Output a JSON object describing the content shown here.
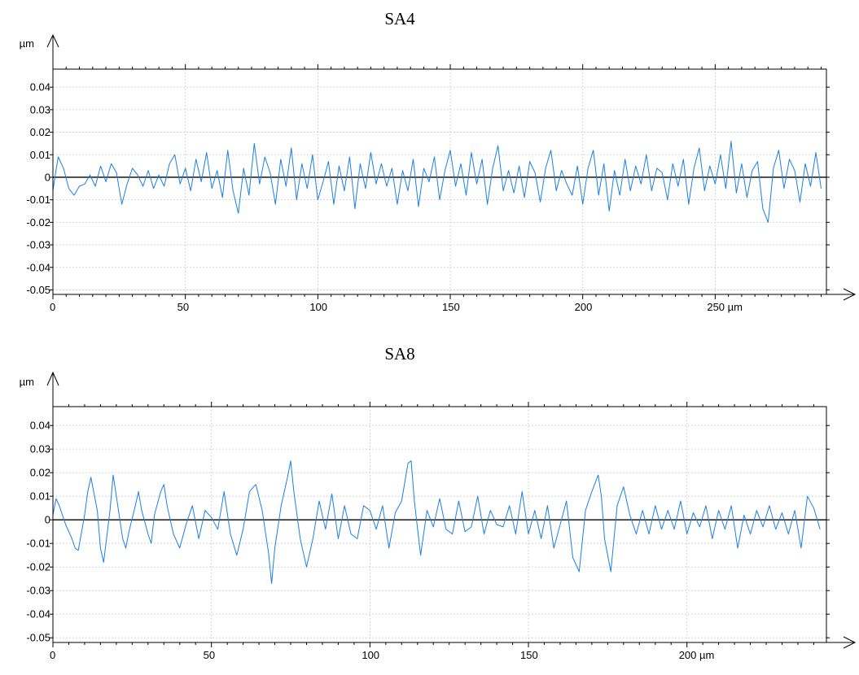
{
  "chart_data": [
    {
      "type": "line",
      "title": "SA4",
      "x_unit": "µm",
      "y_unit": "µm",
      "xlim": [
        0,
        292
      ],
      "ylim": [
        -0.052,
        0.048
      ],
      "x_ticks": [
        0,
        50,
        100,
        150,
        200,
        250
      ],
      "x_tick_labels": [
        "0",
        "50",
        "100",
        "150",
        "200",
        "250 µm"
      ],
      "y_ticks": [
        0.04,
        0.03,
        0.02,
        0.01,
        0,
        -0.01,
        -0.02,
        -0.03,
        -0.04,
        -0.05
      ],
      "y_tick_labels": [
        "0.04",
        "0.03",
        "0.02",
        "0.01",
        "0",
        "-0.01",
        "-0.02",
        "-0.03",
        "-0.04",
        "-0.05"
      ],
      "grid": true,
      "color": "#1a7fe6",
      "series": [
        {
          "x": [
            0,
            1,
            2,
            4,
            6,
            8,
            10,
            12,
            14,
            16,
            18,
            20,
            22,
            24,
            26,
            28,
            30,
            32,
            34,
            36,
            38,
            40,
            42,
            44,
            46,
            48,
            50,
            52,
            54,
            56,
            58,
            60,
            62,
            64,
            66,
            68,
            70,
            72,
            74,
            76,
            78,
            80,
            82,
            84,
            86,
            88,
            90,
            92,
            94,
            96,
            98,
            100,
            102,
            104,
            106,
            108,
            110,
            112,
            114,
            116,
            118,
            120,
            122,
            124,
            126,
            128,
            130,
            132,
            134,
            136,
            138,
            140,
            142,
            144,
            146,
            148,
            150,
            152,
            154,
            156,
            158,
            160,
            162,
            164,
            166,
            168,
            170,
            172,
            174,
            176,
            178,
            180,
            182,
            184,
            186,
            188,
            190,
            192,
            194,
            196,
            198,
            200,
            202,
            204,
            206,
            208,
            210,
            212,
            214,
            216,
            218,
            220,
            222,
            224,
            226,
            228,
            230,
            232,
            234,
            236,
            238,
            240,
            242,
            244,
            246,
            248,
            250,
            252,
            254,
            256,
            258,
            260,
            262,
            264,
            266,
            268,
            270,
            272,
            274,
            276,
            278,
            280,
            282,
            284,
            286,
            288,
            290
          ],
          "y": [
            -0.006,
            0.002,
            0.009,
            0.004,
            -0.005,
            -0.008,
            -0.004,
            -0.003,
            0.001,
            -0.004,
            0.005,
            -0.002,
            0.006,
            0.002,
            -0.012,
            -0.003,
            0.004,
            0.001,
            -0.004,
            0.003,
            -0.005,
            0.001,
            -0.004,
            0.006,
            0.01,
            -0.003,
            0.004,
            -0.006,
            0.008,
            -0.002,
            0.011,
            -0.005,
            0.003,
            -0.009,
            0.012,
            -0.006,
            -0.016,
            0.004,
            -0.008,
            0.015,
            -0.003,
            0.009,
            0.002,
            -0.012,
            0.008,
            -0.004,
            0.013,
            -0.01,
            0.006,
            -0.005,
            0.01,
            -0.01,
            -0.002,
            0.007,
            -0.012,
            0.005,
            -0.006,
            0.009,
            -0.014,
            0.006,
            -0.005,
            0.011,
            -0.003,
            0.006,
            -0.004,
            0.004,
            -0.012,
            0.003,
            -0.006,
            0.008,
            -0.013,
            0.004,
            -0.002,
            0.009,
            -0.01,
            0.003,
            0.012,
            -0.004,
            0.006,
            -0.008,
            0.011,
            -0.003,
            0.008,
            -0.012,
            0.004,
            0.014,
            -0.006,
            0.003,
            -0.007,
            0.005,
            -0.009,
            0.007,
            0.002,
            -0.011,
            0.004,
            0.012,
            -0.006,
            0.003,
            -0.003,
            -0.008,
            0.005,
            -0.012,
            0.004,
            0.012,
            -0.008,
            0.006,
            -0.015,
            0.003,
            -0.008,
            0.008,
            -0.006,
            0.005,
            -0.003,
            0.01,
            -0.006,
            0.004,
            0.002,
            -0.01,
            0.006,
            -0.004,
            0.008,
            -0.012,
            0.004,
            0.013,
            -0.006,
            0.005,
            -0.003,
            0.01,
            -0.005,
            0.016,
            -0.007,
            0.006,
            -0.009,
            0.003,
            0.007,
            -0.014,
            -0.02,
            0.004,
            0.012,
            -0.005,
            0.008,
            0.003,
            -0.011,
            0.006,
            -0.004,
            0.011,
            -0.005
          ]
        }
      ]
    },
    {
      "type": "line",
      "title": "SA8",
      "x_unit": "µm",
      "y_unit": "µm",
      "xlim": [
        0,
        244
      ],
      "ylim": [
        -0.052,
        0.048
      ],
      "x_ticks": [
        0,
        50,
        100,
        150,
        200
      ],
      "x_tick_labels": [
        "0",
        "50",
        "100",
        "150",
        "200 µm"
      ],
      "y_ticks": [
        0.04,
        0.03,
        0.02,
        0.01,
        0,
        -0.01,
        -0.02,
        -0.03,
        -0.04,
        -0.05
      ],
      "y_tick_labels": [
        "0.04",
        "0.03",
        "0.02",
        "0.01",
        "0",
        "-0.01",
        "-0.02",
        "-0.03",
        "-0.04",
        "-0.05"
      ],
      "grid": true,
      "color": "#1a7fe6",
      "series": [
        {
          "x": [
            0,
            1,
            2,
            4,
            6,
            7,
            8,
            10,
            11,
            12,
            14,
            15,
            16,
            18,
            19,
            20,
            22,
            23,
            24,
            26,
            27,
            28,
            30,
            31,
            32,
            34,
            35,
            36,
            38,
            40,
            42,
            44,
            46,
            48,
            50,
            52,
            54,
            56,
            58,
            60,
            62,
            64,
            66,
            68,
            69,
            70,
            72,
            74,
            75,
            76,
            78,
            80,
            82,
            84,
            86,
            88,
            90,
            92,
            94,
            96,
            98,
            100,
            102,
            104,
            106,
            108,
            110,
            112,
            113,
            114,
            116,
            118,
            120,
            122,
            124,
            126,
            128,
            130,
            132,
            134,
            136,
            138,
            140,
            142,
            144,
            146,
            148,
            150,
            152,
            154,
            156,
            158,
            160,
            162,
            164,
            166,
            168,
            170,
            172,
            173,
            174,
            176,
            178,
            180,
            182,
            184,
            186,
            188,
            190,
            192,
            194,
            196,
            198,
            200,
            202,
            204,
            206,
            208,
            210,
            212,
            214,
            216,
            218,
            220,
            222,
            224,
            226,
            228,
            230,
            232,
            234,
            236,
            238,
            240,
            242
          ],
          "y": [
            0.002,
            0.009,
            0.006,
            -0.002,
            -0.008,
            -0.012,
            -0.013,
            0.002,
            0.012,
            0.018,
            0.004,
            -0.012,
            -0.018,
            0.004,
            0.019,
            0.01,
            -0.008,
            -0.012,
            -0.005,
            0.006,
            0.012,
            0.004,
            -0.006,
            -0.01,
            0.002,
            0.012,
            0.015,
            0.006,
            -0.006,
            -0.012,
            -0.002,
            0.006,
            -0.008,
            0.004,
            0.001,
            -0.004,
            0.012,
            -0.006,
            -0.015,
            -0.004,
            0.012,
            0.015,
            0.004,
            -0.014,
            -0.027,
            -0.012,
            0.006,
            0.018,
            0.025,
            0.012,
            -0.008,
            -0.02,
            -0.008,
            0.008,
            -0.004,
            0.011,
            -0.008,
            0.006,
            -0.006,
            -0.008,
            0.006,
            0.004,
            -0.004,
            0.006,
            -0.012,
            0.003,
            0.008,
            0.024,
            0.025,
            0.008,
            -0.015,
            0.004,
            -0.003,
            0.009,
            -0.004,
            -0.006,
            0.008,
            -0.005,
            -0.003,
            0.01,
            -0.006,
            0.004,
            -0.002,
            -0.003,
            0.006,
            -0.006,
            0.012,
            -0.006,
            0.004,
            -0.008,
            0.006,
            -0.012,
            -0.002,
            0.008,
            -0.016,
            -0.022,
            0.004,
            0.012,
            0.019,
            0.01,
            -0.008,
            -0.022,
            0.006,
            0.014,
            0.002,
            -0.006,
            0.004,
            -0.006,
            0.006,
            -0.004,
            0.004,
            -0.004,
            0.008,
            -0.006,
            0.003,
            -0.003,
            0.006,
            -0.008,
            0.004,
            -0.004,
            0.006,
            -0.012,
            0.002,
            -0.006,
            0.004,
            -0.003,
            0.006,
            -0.004,
            0.003,
            -0.006,
            0.004,
            -0.012,
            0.01,
            0.005,
            -0.004
          ]
        }
      ]
    }
  ]
}
